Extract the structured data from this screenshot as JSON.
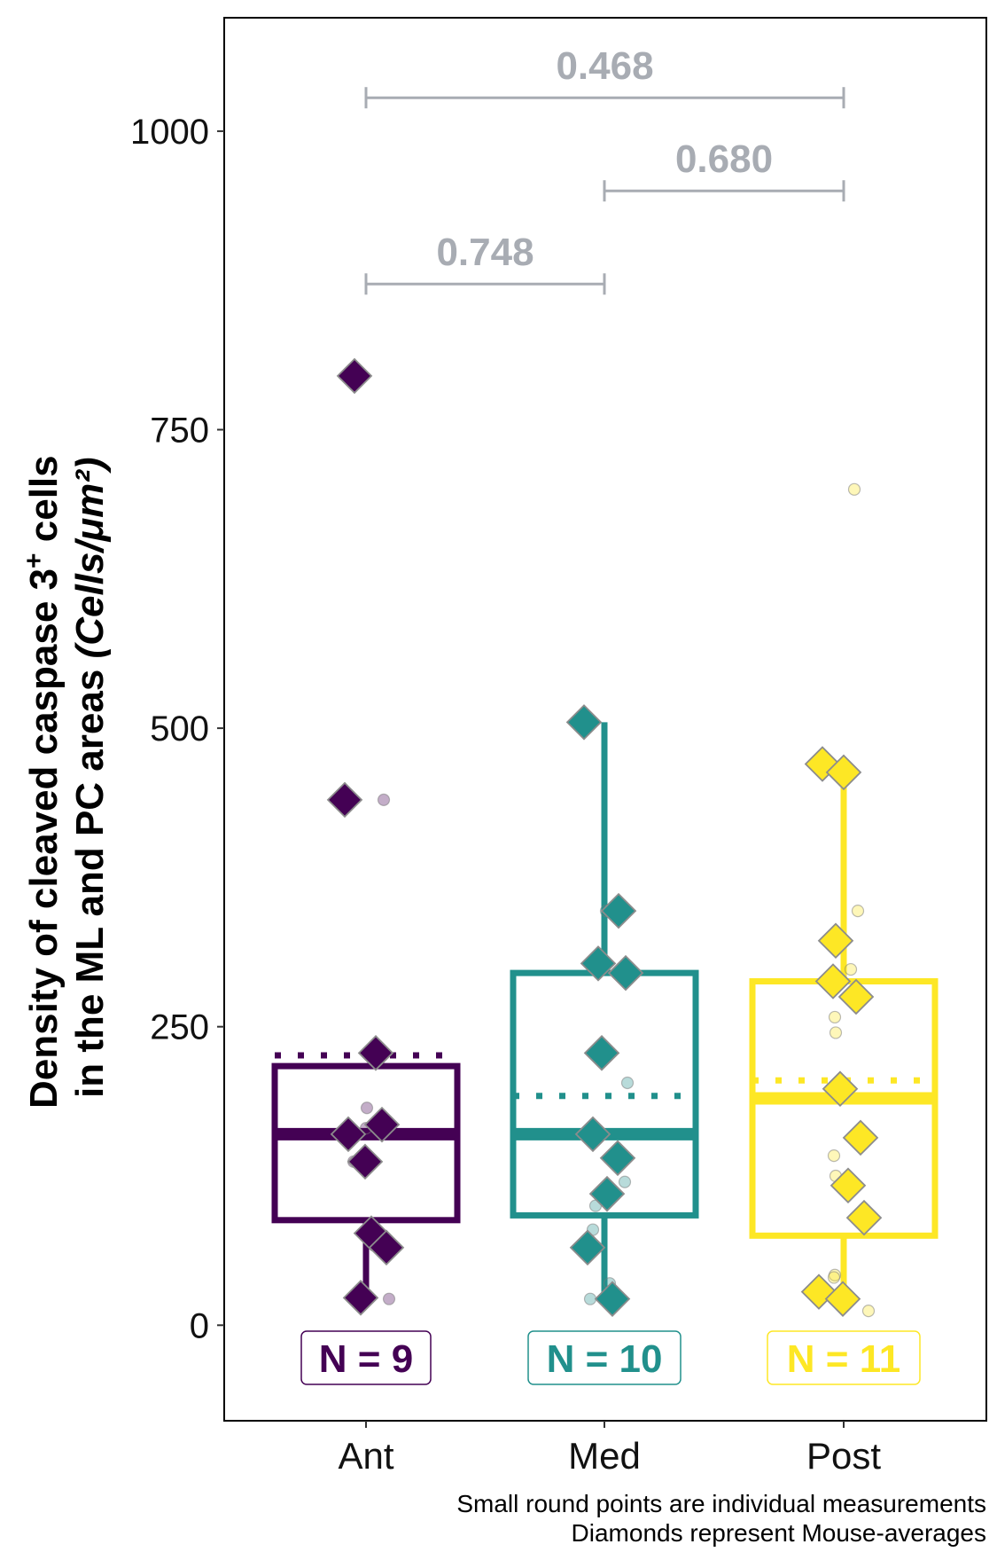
{
  "chart_data": {
    "type": "box",
    "ylabel_line1": "Density of cleaved caspase 3",
    "ylabel_sup": "+",
    "ylabel_line1_end": " cells",
    "ylabel_line2": "in the ML and PC areas ",
    "ylabel_units": "(Cells/μm²)",
    "ylim": [
      -80,
      1095
    ],
    "yticks": [
      0,
      250,
      500,
      750,
      1000
    ],
    "categories": [
      "Ant",
      "Med",
      "Post"
    ],
    "colors": [
      "#440154",
      "#21908c",
      "#fde725"
    ],
    "groups": [
      {
        "name": "Ant",
        "n_label": "N = 9",
        "box": {
          "q1": 88,
          "median": 160,
          "q3": 217,
          "whisker_low": 22,
          "whisker_high": 217,
          "mean": 226
        },
        "averages": [
          795,
          440,
          228,
          168,
          160,
          137,
          77,
          65,
          23
        ],
        "measurements": [
          440,
          182,
          165,
          137,
          22
        ]
      },
      {
        "name": "Med",
        "n_label": "N = 10",
        "box": {
          "q1": 92,
          "median": 160,
          "q3": 295,
          "whisker_low": 22,
          "whisker_high": 505,
          "mean": 192
        },
        "averages": [
          505,
          347,
          303,
          295,
          228,
          160,
          140,
          110,
          65,
          22
        ],
        "measurements": [
          347,
          305,
          230,
          203,
          120,
          100,
          80,
          35,
          22
        ]
      },
      {
        "name": "Post",
        "n_label": "N = 11",
        "box": {
          "q1": 75,
          "median": 190,
          "q3": 288,
          "whisker_low": 22,
          "whisker_high": 470,
          "mean": 205
        },
        "averages": [
          470,
          463,
          322,
          288,
          275,
          198,
          157,
          117,
          90,
          28,
          22
        ],
        "measurements": [
          700,
          347,
          298,
          258,
          245,
          142,
          125,
          42,
          40,
          12
        ]
      }
    ],
    "comparisons": [
      {
        "from": 0,
        "to": 2,
        "y": 1028,
        "label": "0.468"
      },
      {
        "from": 1,
        "to": 2,
        "y": 950,
        "label": "0.680"
      },
      {
        "from": 0,
        "to": 1,
        "y": 872,
        "label": "0.748"
      }
    ],
    "caption": [
      "Small round points are individual measurements",
      "Diamonds represent Mouse-averages"
    ]
  }
}
